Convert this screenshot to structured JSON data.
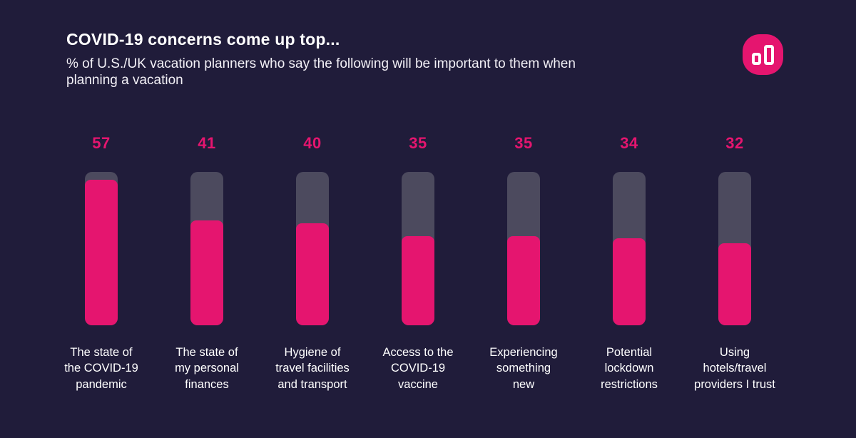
{
  "header": {
    "title": "COVID-19 concerns come up top...",
    "subtitle": "% of U.S./UK vacation planners who say the following will be important to them when\nplanning a vacation"
  },
  "logo": {
    "icon": "bar-chart-logo"
  },
  "colors": {
    "background": "#201c3a",
    "bar_fill": "#e5156f",
    "bar_track": "#4c4a5e",
    "value_label": "#e5156f",
    "text": "#ffffff",
    "logo_background": "#e5156f",
    "logo_glyph": "#ffffff"
  },
  "chart_data": {
    "type": "bar",
    "orientation": "vertical",
    "title": "COVID-19 concerns come up top...",
    "subtitle": "% of U.S./UK vacation planners who say the following will be important to them when planning a vacation",
    "categories": [
      "The state of the COVID-19 pandemic",
      "The state of my personal finances",
      "Hygiene of travel facilities and transport",
      "Access to the COVID-19 vaccine",
      "Experiencing something new",
      "Potential lockdown restrictions",
      "Using hotels/travel providers I trust"
    ],
    "category_lines": [
      [
        "The state of",
        "the COVID-19",
        "pandemic"
      ],
      [
        "The state of",
        "my personal",
        "finances"
      ],
      [
        "Hygiene of",
        "travel facilities",
        "and transport"
      ],
      [
        "Access to the",
        "COVID-19",
        "vaccine"
      ],
      [
        "Experiencing",
        "something",
        "new"
      ],
      [
        "Potential",
        "lockdown",
        "restrictions"
      ],
      [
        "Using",
        "hotels/travel",
        "providers I trust"
      ]
    ],
    "values": [
      57,
      41,
      40,
      35,
      35,
      34,
      32
    ],
    "xlabel": "",
    "ylabel": "",
    "ylim": [
      0,
      60
    ],
    "grid": false,
    "legend": false,
    "value_labels_shown": true
  }
}
